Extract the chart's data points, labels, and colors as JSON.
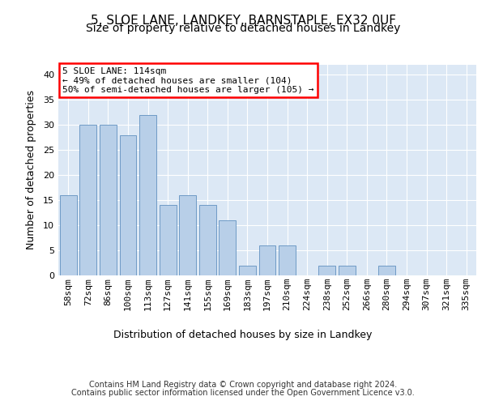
{
  "title1": "5, SLOE LANE, LANDKEY, BARNSTAPLE, EX32 0UF",
  "title2": "Size of property relative to detached houses in Landkey",
  "xlabel": "Distribution of detached houses by size in Landkey",
  "ylabel": "Number of detached properties",
  "categories": [
    "58sqm",
    "72sqm",
    "86sqm",
    "100sqm",
    "113sqm",
    "127sqm",
    "141sqm",
    "155sqm",
    "169sqm",
    "183sqm",
    "197sqm",
    "210sqm",
    "224sqm",
    "238sqm",
    "252sqm",
    "266sqm",
    "280sqm",
    "294sqm",
    "307sqm",
    "321sqm",
    "335sqm"
  ],
  "values": [
    16,
    30,
    30,
    28,
    32,
    14,
    16,
    14,
    11,
    2,
    6,
    6,
    0,
    2,
    2,
    0,
    2,
    0,
    0,
    0,
    0
  ],
  "bar_color": "#b8cfe8",
  "bar_edge_color": "#6090c0",
  "annotation_text1": "5 SLOE LANE: 114sqm",
  "annotation_text2": "← 49% of detached houses are smaller (104)",
  "annotation_text3": "50% of semi-detached houses are larger (105) →",
  "annotation_box_facecolor": "white",
  "annotation_box_edgecolor": "red",
  "ylim": [
    0,
    42
  ],
  "yticks": [
    0,
    5,
    10,
    15,
    20,
    25,
    30,
    35,
    40
  ],
  "bg_color": "#dce8f5",
  "grid_color": "white",
  "footer1": "Contains HM Land Registry data © Crown copyright and database right 2024.",
  "footer2": "Contains public sector information licensed under the Open Government Licence v3.0.",
  "title1_fontsize": 11,
  "title2_fontsize": 10,
  "xlabel_fontsize": 9,
  "ylabel_fontsize": 9,
  "tick_fontsize": 8,
  "footer_fontsize": 7
}
